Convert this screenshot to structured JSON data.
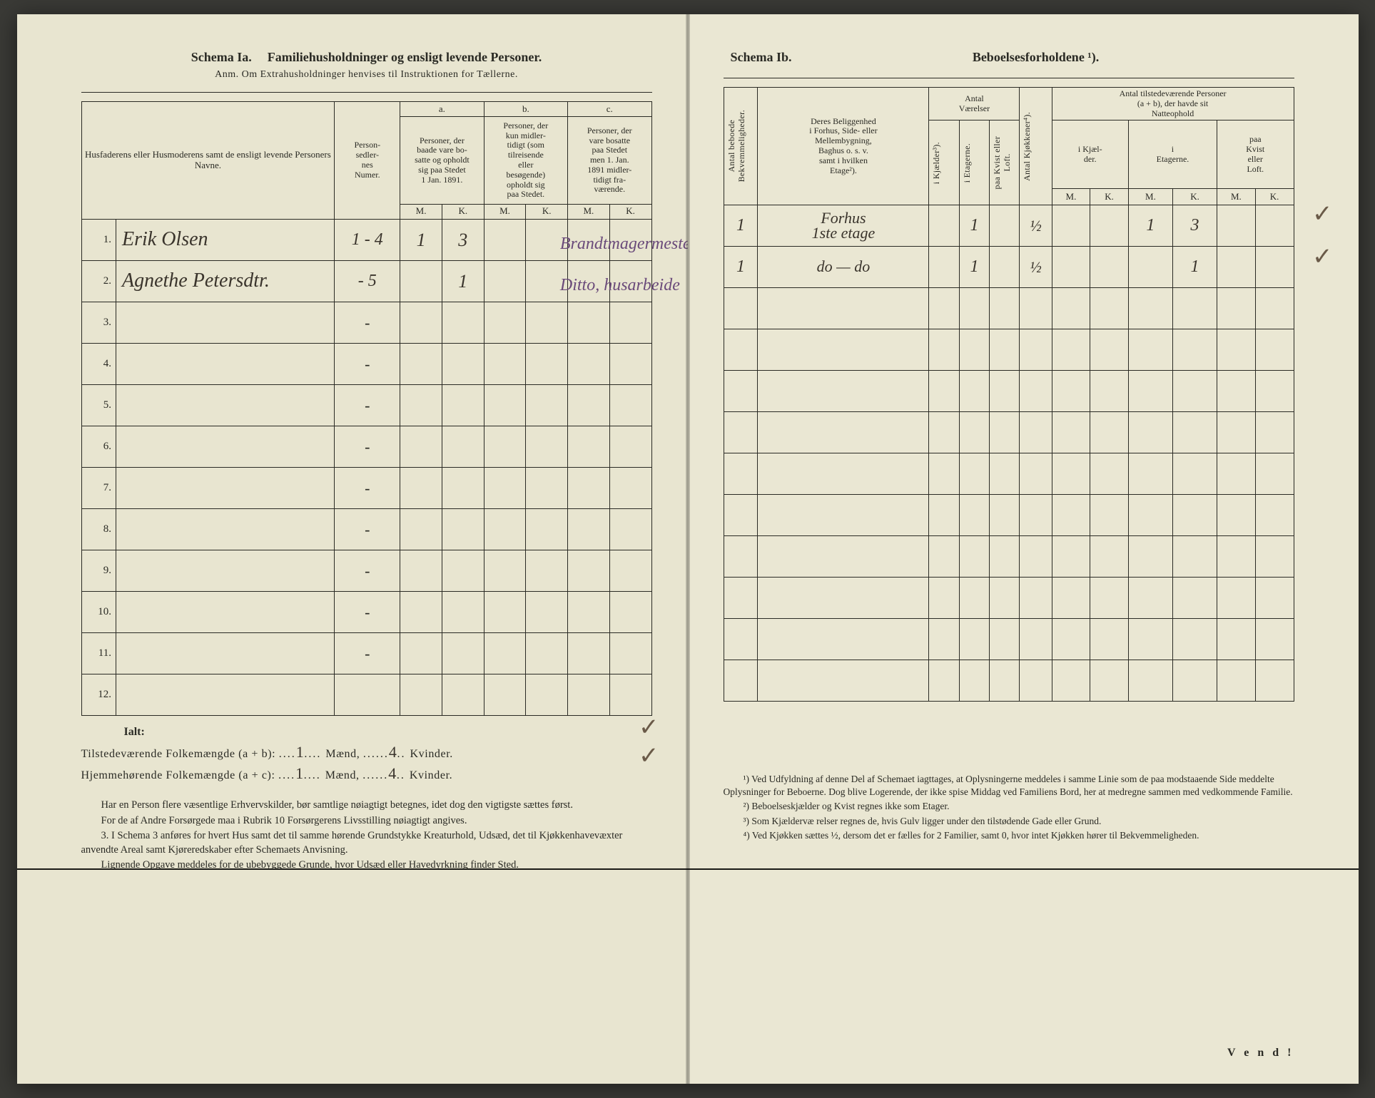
{
  "left": {
    "schema_label": "Schema Ia.",
    "schema_title": "Familiehusholdninger og ensligt levende Personer.",
    "anm": "Anm. Om Extrahusholdninger henvises til Instruktionen for Tællerne.",
    "headers": {
      "names": "Husfaderens eller Husmoderens samt de ensligt levende Personers Navne.",
      "person_sedler": "Person-\nsedler-\nnes\nNumer.",
      "a_label": "a.",
      "a_text": "Personer, der\nbaade vare bo-\nsatte og opholdt\nsig paa Stedet\n1 Jan. 1891.",
      "b_label": "b.",
      "b_text": "Personer, der\nkun midler-\ntidigt (som\ntilreisende\neller\nbesøgende)\nopholdt sig\npaa Stedet.",
      "c_label": "c.",
      "c_text": "Personer, der\nvare bosatte\npaa Stedet\nmen 1. Jan.\n1891 midler-\ntidigt fra-\nværende.",
      "M": "M.",
      "K": "K."
    },
    "rows": [
      {
        "num": "1.",
        "name": "Erik Olsen",
        "sedler": "1 - 4",
        "aM": "1",
        "aK": "3",
        "note": "Brandtmagermester"
      },
      {
        "num": "2.",
        "name": "Agnethe Petersdtr.",
        "sedler": "- 5",
        "aM": "",
        "aK": "1",
        "note": "Ditto, husarbeide"
      },
      {
        "num": "3.",
        "name": "",
        "sedler": "-",
        "aM": "",
        "aK": ""
      },
      {
        "num": "4.",
        "name": "",
        "sedler": "-",
        "aM": "",
        "aK": ""
      },
      {
        "num": "5.",
        "name": "",
        "sedler": "-",
        "aM": "",
        "aK": ""
      },
      {
        "num": "6.",
        "name": "",
        "sedler": "-",
        "aM": "",
        "aK": ""
      },
      {
        "num": "7.",
        "name": "",
        "sedler": "-",
        "aM": "",
        "aK": ""
      },
      {
        "num": "8.",
        "name": "",
        "sedler": "-",
        "aM": "",
        "aK": ""
      },
      {
        "num": "9.",
        "name": "",
        "sedler": "-",
        "aM": "",
        "aK": ""
      },
      {
        "num": "10.",
        "name": "",
        "sedler": "-",
        "aM": "",
        "aK": ""
      },
      {
        "num": "11.",
        "name": "",
        "sedler": "-",
        "aM": "",
        "aK": ""
      },
      {
        "num": "12.",
        "name": "",
        "sedler": "",
        "aM": "",
        "aK": ""
      }
    ],
    "totals": {
      "ialt": "Ialt:",
      "line1_label": "Tilstedeværende Folkemængde (a + b):",
      "line2_label": "Hjemmehørende Folkemængde (a + c):",
      "maend": "Mænd,",
      "kvinder": "Kvinder.",
      "val_m1": "1",
      "val_k1": "4",
      "val_m2": "1",
      "val_k2": "4"
    },
    "paras": {
      "p1": "Har en Person flere væsentlige Erhvervskilder, bør samtlige nøiagtigt betegnes, idet dog den vigtigste sættes først.",
      "p2": "For de af Andre Forsørgede maa i Rubrik 10 Forsørgerens Livsstilling nøiagtigt angives.",
      "p3_lead": "3. ",
      "p3": "I Schema 3 anføres for hvert Hus samt det til samme hørende Grundstykke Kreaturhold, Udsæd, det til Kjøkkenhavevæxter anvendte Areal samt Kjøreredskaber efter Schemaets Anvisning.",
      "p4": "Lignende Opgave meddeles for de ubebyggede Grunde, hvor Udsæd eller Havedyrkning finder Sted."
    }
  },
  "right": {
    "schema_label": "Schema Ib.",
    "schema_title": "Beboelsesforholdene ¹).",
    "headers": {
      "antal_bekv": "Antal beboede\nBekvemmeligheder.",
      "belig": "Deres Beliggenhed\ni Forhus, Side- eller\nMellembygning,\nBaghus o. s. v.\nsamt i hvilken\nEtage²).",
      "antal_vaer": "Antal\nVærelser",
      "i_kjaelder": "i Kjælder³).",
      "i_etagerne_v": "i Etagerne.",
      "paa_kvist": "paa Kvist eller\nLoft.",
      "antal_kj": "Antal Kjøkkener⁴).",
      "antal_tilst": "Antal tilstedeværende Personer\n(a + b), der havde sit\nNatteophold",
      "i_kjael": "i Kjæl-\nder.",
      "i_etagerne": "i\nEtagerne.",
      "paa_kvist2": "paa\nKvist\neller\nLoft.",
      "M": "M.",
      "K": "K."
    },
    "rows": [
      {
        "bekv": "1",
        "belig": "Forhus\n1ste etage",
        "kj": "",
        "etg": "1",
        "kv": "",
        "kjok": "½",
        "nkjM": "",
        "nkjK": "",
        "netM": "1",
        "netK": "3",
        "nkvM": "",
        "nkvK": ""
      },
      {
        "bekv": "1",
        "belig": "do — do",
        "kj": "",
        "etg": "1",
        "kv": "",
        "kjok": "½",
        "nkjM": "",
        "nkjK": "",
        "netM": "",
        "netK": "1",
        "nkvM": "",
        "nkvK": ""
      }
    ],
    "footnotes": {
      "f1": "¹) Ved Udfyldning af denne Del af Schemaet iagttages, at Oplysningerne meddeles i samme Linie som de paa modstaaende Side meddelte Oplysninger for Beboerne. Dog blive Logerende, der ikke spise Middag ved Familiens Bord, her at medregne sammen med vedkommende Familie.",
      "f2": "²) Beboelseskjælder og Kvist regnes ikke som Etager.",
      "f3": "³) Som Kjældervæ relser regnes de, hvis Gulv ligger under den tilstødende Gade eller Grund.",
      "f4": "⁴) Ved Kjøkken sættes ½, dersom det er fælles for 2 Familier, samt 0, hvor intet Kjøkken hører til Bekvemmeligheden."
    },
    "vend": "V e n d !"
  },
  "colors": {
    "paper": "#e8e5d0",
    "ink": "#2a2a24",
    "hand": "#3a342c",
    "hand_purple": "#6a4a7a"
  }
}
